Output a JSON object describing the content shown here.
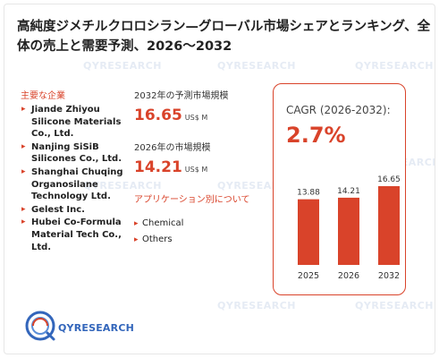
{
  "title": "高純度ジメチルクロロシラン—グローバル市場シェアとランキング、全体の売上と需要予測、2026～2032",
  "key_companies": {
    "label": "主要な企業",
    "items": [
      "Jiande Zhiyou Silicone Materials Co., Ltd.",
      "Nanjing SiSiB Silicones Co., Ltd.",
      "Shanghai Chuqing Organosilane Technology Ltd.",
      "Gelest Inc.",
      "Hubei Co-Formula Material Tech Co., Ltd."
    ]
  },
  "forecast": {
    "label": "2032年の予測市場規模",
    "value": "16.65",
    "unit": "US$ M"
  },
  "current": {
    "label": "2026年の市場規模",
    "value": "14.21",
    "unit": "US$ M"
  },
  "applications": {
    "label": "アプリケーション別について",
    "items": [
      "Chemical",
      "Others"
    ]
  },
  "cagr": {
    "label": "CAGR (2026-2032):",
    "value": "2.7%"
  },
  "chart_data": {
    "type": "bar",
    "categories": [
      "2025",
      "2026",
      "2032"
    ],
    "values": [
      13.88,
      14.21,
      16.65
    ],
    "data_labels": [
      "13.88",
      "14.21",
      "16.65"
    ],
    "ylim": [
      0,
      16.65
    ],
    "grid": false,
    "bar_color": "#d9432a"
  },
  "logo": {
    "text": "QYRESEARCH",
    "brand_color": "#3366bb"
  },
  "watermark": {
    "text": "QYRESEARCH"
  },
  "colors": {
    "accent": "#d9432a",
    "text": "#222222",
    "watermark": "#e3e9f3"
  }
}
